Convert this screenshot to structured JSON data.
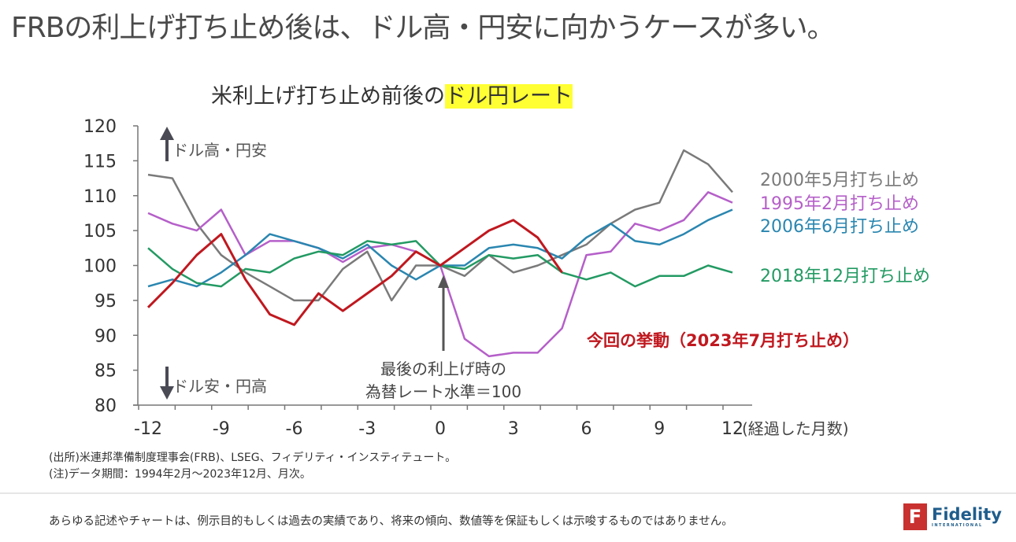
{
  "headline": "FRBの利上げ打ち止め後は、ドル高・円安に向かうケースが多い。",
  "chart_title_prefix": "米利上げ打ち止め前後の",
  "chart_title_highlight": "ドル円レート",
  "chart_data": {
    "type": "line",
    "title": "米利上げ打ち止め前後のドル円レート",
    "xlabel": "(経過した月数)",
    "ylabel": "",
    "xlim": [
      -12,
      12
    ],
    "ylim": [
      80,
      120
    ],
    "x_ticks": [
      -12,
      -9,
      -6,
      -3,
      0,
      3,
      6,
      9,
      12
    ],
    "x_tick_labels": [
      "-12",
      "-9",
      "-6",
      "-3",
      "0",
      "3",
      "6",
      "9",
      "12"
    ],
    "y_ticks": [
      80,
      85,
      90,
      95,
      100,
      105,
      110,
      115,
      120
    ],
    "y_tick_labels": [
      "80",
      "85",
      "90",
      "95",
      "100",
      "105",
      "110",
      "115",
      "120"
    ],
    "grid": false,
    "x": [
      -12,
      -11,
      -10,
      -9,
      -8,
      -7,
      -6,
      -5,
      -4,
      -3,
      -2,
      -1,
      0,
      1,
      2,
      3,
      4,
      5,
      6,
      7,
      8,
      9,
      10,
      11,
      12
    ],
    "series": [
      {
        "name": "2000年5月打ち止め",
        "color": "#7a7a7a",
        "values": [
          113,
          112.5,
          106,
          101.5,
          99,
          97,
          95,
          95,
          99.5,
          102,
          95,
          100,
          100,
          98.5,
          101.5,
          99,
          100,
          101.5,
          103,
          106,
          108,
          109,
          116.5,
          114.5,
          110.5
        ]
      },
      {
        "name": "1995年2月打ち止め",
        "color": "#b55fc9",
        "values": [
          107.5,
          106,
          105,
          108,
          101.5,
          103.5,
          103.5,
          102.5,
          100.5,
          102.5,
          103,
          102,
          100,
          89.5,
          87,
          87.5,
          87.5,
          91,
          101.5,
          102,
          106,
          105,
          106.5,
          110.5,
          109
        ]
      },
      {
        "name": "2006年6月打ち止め",
        "color": "#2a86b0",
        "values": [
          97,
          98,
          97,
          99,
          101.5,
          104.5,
          103.5,
          102.5,
          101,
          103,
          100,
          98,
          100,
          100,
          102.5,
          103,
          102.5,
          101,
          104,
          106,
          103.5,
          103,
          104.5,
          106.5,
          108
        ]
      },
      {
        "name": "2018年12月打ち止め",
        "color": "#239a63",
        "values": [
          102.5,
          99.5,
          97.5,
          97,
          99.5,
          99,
          101,
          102,
          101.5,
          103.5,
          103,
          103.5,
          100,
          99.5,
          101.5,
          101,
          101.5,
          99,
          98,
          99,
          97,
          98.5,
          98.5,
          100,
          99
        ]
      },
      {
        "name": "今回の挙動（2023年7月打ち止め）",
        "color": "#c0181f",
        "values": [
          94,
          97.5,
          101.5,
          104.5,
          98,
          93,
          91.5,
          96,
          93.5,
          96,
          98.5,
          102,
          100,
          102.5,
          105,
          106.5,
          104,
          99,
          null,
          null,
          null,
          null,
          null,
          null,
          null
        ]
      }
    ],
    "annotations": {
      "up": "ドル高・円安",
      "down": "ドル安・円高",
      "baseline_line1": "最後の利上げ時の",
      "baseline_line2": "為替レート水準＝100"
    }
  },
  "notes": {
    "source": "(出所)米連邦準備制度理事会(FRB)、LSEG、フィデリティ・インスティテュート。",
    "note": "(注)データ期間：1994年2月～2023年12月、月次。"
  },
  "disclaimer": "あらゆる記述やチャートは、例示目的もしくは過去の実績であり、将来の傾向、数値等を保証もしくは示唆するものではありません。",
  "logo": {
    "mark": "F",
    "name": "Fidelity",
    "sub": "INTERNATIONAL"
  }
}
